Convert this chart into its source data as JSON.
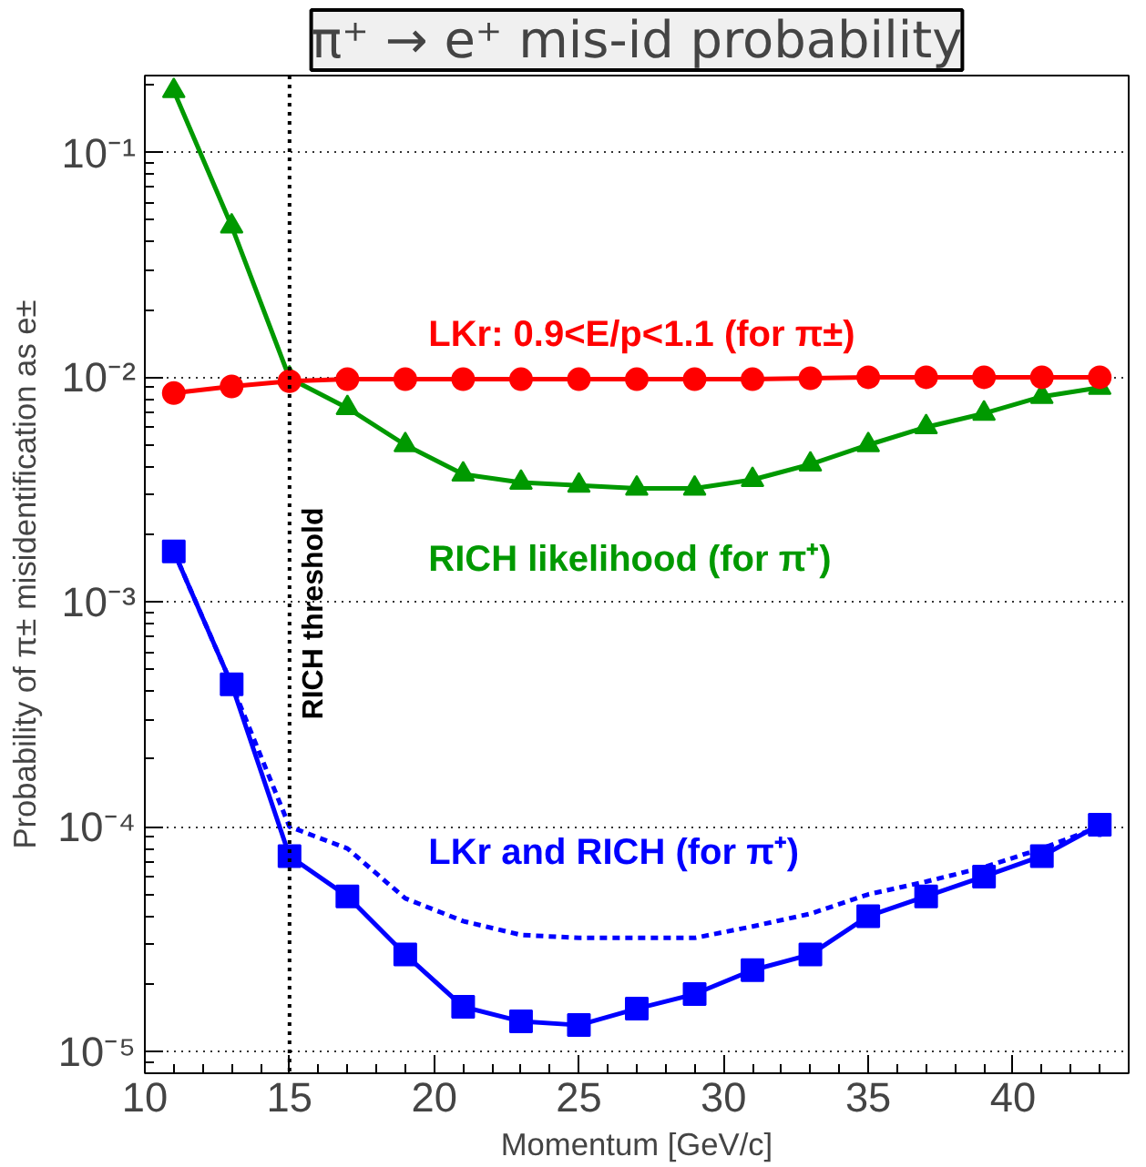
{
  "chart_data": {
    "type": "line",
    "title": "π⁺ → e⁺ mis-id probability",
    "xlabel": "Momentum [GeV/c]",
    "ylabel": "Probability of π± misidentification as e±",
    "x": [
      11,
      13,
      15,
      17,
      19,
      21,
      23,
      25,
      27,
      29,
      31,
      33,
      35,
      37,
      39,
      41,
      43
    ],
    "series": [
      {
        "name": "LKr: 0.9<E/p<1.1 (for π±)",
        "color": "#ff0000",
        "marker": "circle",
        "values": [
          0.0085,
          0.0091,
          0.0096,
          0.0098,
          0.0098,
          0.0098,
          0.0098,
          0.0098,
          0.0098,
          0.0098,
          0.0098,
          0.0099,
          0.01,
          0.01,
          0.01,
          0.01,
          0.01
        ]
      },
      {
        "name": "RICH likelihood (for π⁺)",
        "color": "#009900",
        "marker": "triangle",
        "values": [
          0.188,
          0.047,
          0.0099,
          0.0073,
          0.005,
          0.0037,
          0.0034,
          0.0033,
          0.0032,
          0.0032,
          0.0035,
          0.0041,
          0.005,
          0.006,
          0.0069,
          0.0082,
          0.009
        ]
      },
      {
        "name": "LKr and RICH (for π⁺)",
        "color": "#0000ff",
        "marker": "square",
        "values": [
          0.00168,
          0.00043,
          7.4e-05,
          4.9e-05,
          2.7e-05,
          1.58e-05,
          1.36e-05,
          1.31e-05,
          1.55e-05,
          1.8e-05,
          2.3e-05,
          2.7e-05,
          4e-05,
          4.9e-05,
          6e-05,
          7.4e-05,
          0.000102
        ],
        "errors": [
          null,
          null,
          null,
          null,
          null,
          null,
          null,
          null,
          null,
          null,
          null,
          null,
          null,
          null,
          null,
          null,
          1.2e-05
        ]
      },
      {
        "color": "#0000ff",
        "marker": "none",
        "line_style": "dashed",
        "values": [
          0.00168,
          0.00043,
          0.0001,
          8e-05,
          4.8e-05,
          3.8e-05,
          3.3e-05,
          3.2e-05,
          3.2e-05,
          3.2e-05,
          3.6e-05,
          4.1e-05,
          5e-05,
          5.7e-05,
          6.6e-05,
          8e-05,
          0.0001
        ]
      }
    ],
    "log": "y",
    "xlim": [
      10,
      44
    ],
    "ylim": [
      8e-06,
      0.22
    ],
    "xticks": [
      10,
      15,
      20,
      25,
      30,
      35,
      40
    ],
    "yticks": [
      {
        "value": 1e-05,
        "label": "10⁻⁵"
      },
      {
        "value": 0.0001,
        "label": "10⁻⁴"
      },
      {
        "value": 0.001,
        "label": "10⁻³"
      },
      {
        "value": 0.01,
        "label": "10⁻²"
      },
      {
        "value": 0.1,
        "label": "10⁻¹"
      }
    ],
    "grid": "y",
    "ref_lines": [
      {
        "axis": "x",
        "value": 15,
        "label": "RICH threshold",
        "color": "#000000",
        "line_style": "dotted"
      }
    ]
  }
}
